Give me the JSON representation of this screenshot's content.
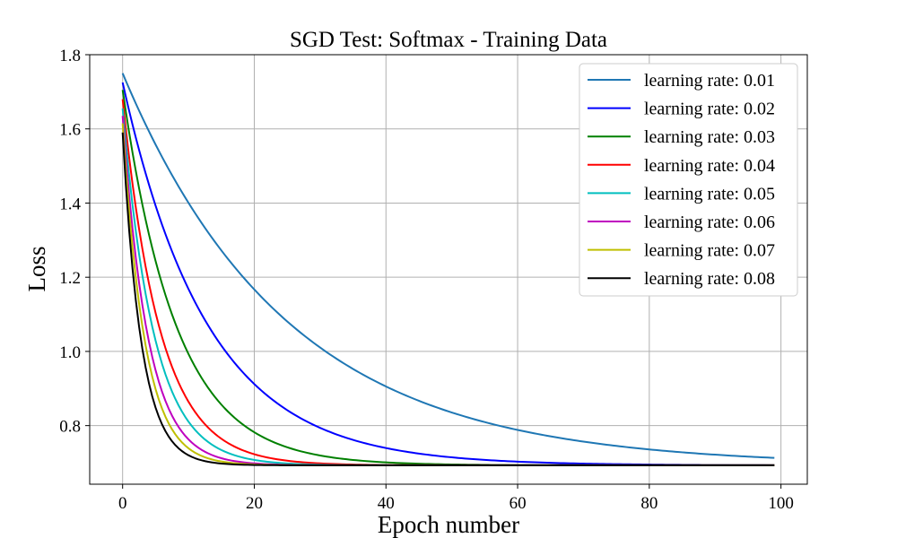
{
  "chart_data": {
    "type": "line",
    "title": "SGD Test: Softmax - Training Data",
    "xlabel": "Epoch number",
    "ylabel": "Loss",
    "xlim": [
      -5,
      104
    ],
    "ylim": [
      0.642,
      1.8
    ],
    "x_ticks": [
      0,
      20,
      40,
      60,
      80,
      100
    ],
    "y_ticks": [
      0.8,
      1.0,
      1.2,
      1.4,
      1.6,
      1.8
    ],
    "grid": true,
    "legend_position": "top-right",
    "x_range": [
      0,
      99
    ],
    "series": [
      {
        "name": "learning rate: 0.01",
        "color": "#1f77b4",
        "start": 1.75,
        "end": 0.693,
        "rate": 0.0401
      },
      {
        "name": "learning rate: 0.02",
        "color": "#0000ff",
        "start": 1.725,
        "end": 0.693,
        "rate": 0.0775
      },
      {
        "name": "learning rate: 0.03",
        "color": "#008000",
        "start": 1.705,
        "end": 0.693,
        "rate": 0.1215
      },
      {
        "name": "learning rate: 0.04",
        "color": "#ff0000",
        "start": 1.68,
        "end": 0.693,
        "rate": 0.175
      },
      {
        "name": "learning rate: 0.05",
        "color": "#00bfbf",
        "start": 1.655,
        "end": 0.693,
        "rate": 0.21
      },
      {
        "name": "learning rate: 0.06",
        "color": "#bf00bf",
        "start": 1.635,
        "end": 0.693,
        "rate": 0.26
      },
      {
        "name": "learning rate: 0.07",
        "color": "#bfbf00",
        "start": 1.615,
        "end": 0.693,
        "rate": 0.3
      },
      {
        "name": "learning rate: 0.08",
        "color": "#000000",
        "start": 1.59,
        "end": 0.693,
        "rate": 0.35
      }
    ]
  }
}
